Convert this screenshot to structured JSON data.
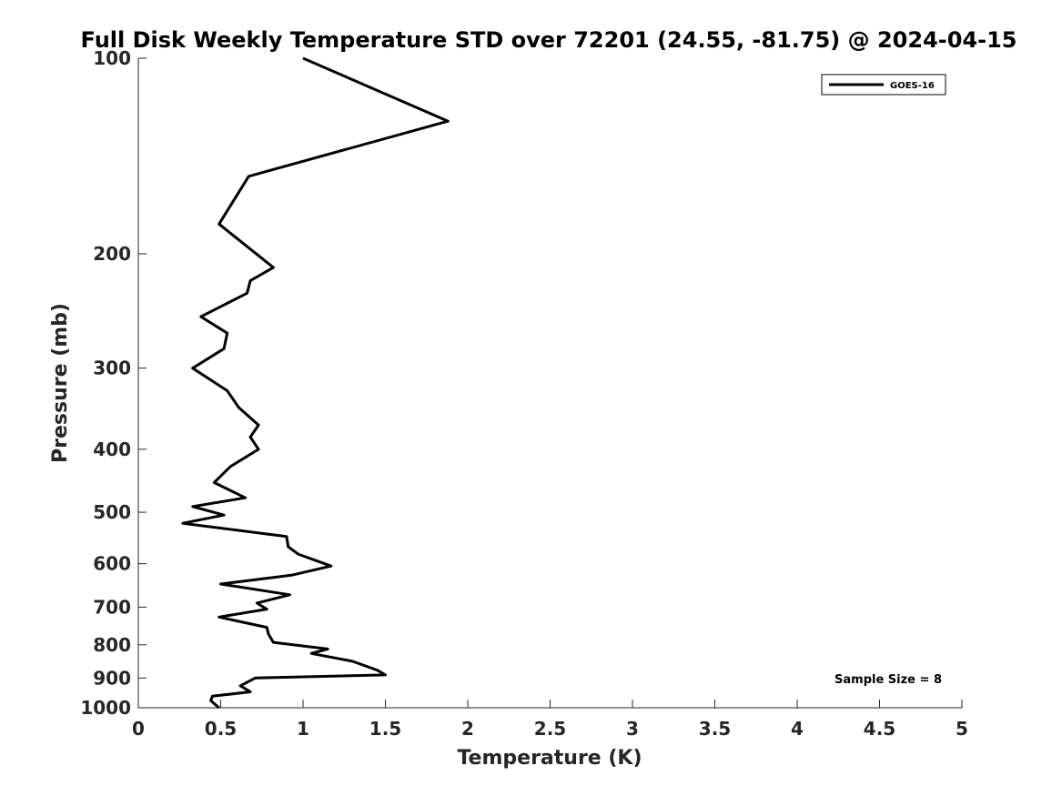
{
  "chart_data": {
    "type": "line",
    "title": "Full Disk Weekly Temperature STD over 72201 (24.55, -81.75) @ 2024-04-15",
    "xlabel": "Temperature (K)",
    "ylabel": "Pressure (mb)",
    "xlim": [
      0,
      5
    ],
    "ylim": [
      100,
      1000
    ],
    "y_scale": "log",
    "y_reversed": true,
    "x_ticks": [
      "0",
      "0.5",
      "1",
      "1.5",
      "2",
      "2.5",
      "3",
      "3.5",
      "4",
      "4.5",
      "5"
    ],
    "y_ticks": [
      "100",
      "200",
      "300",
      "400",
      "500",
      "600",
      "700",
      "800",
      "900",
      "1000"
    ],
    "legend": {
      "location": "top-right",
      "entries": [
        "GOES-16"
      ]
    },
    "annotation": "Sample Size = 8",
    "series": [
      {
        "name": "GOES-16",
        "color": "#000000",
        "points": [
          [
            1.0,
            100
          ],
          [
            1.88,
            125
          ],
          [
            0.67,
            152
          ],
          [
            0.49,
            180
          ],
          [
            0.82,
            210
          ],
          [
            0.68,
            220
          ],
          [
            0.66,
            230
          ],
          [
            0.38,
            250
          ],
          [
            0.54,
            265
          ],
          [
            0.52,
            280
          ],
          [
            0.33,
            300
          ],
          [
            0.54,
            325
          ],
          [
            0.61,
            345
          ],
          [
            0.73,
            367
          ],
          [
            0.68,
            383
          ],
          [
            0.73,
            400
          ],
          [
            0.56,
            425
          ],
          [
            0.46,
            450
          ],
          [
            0.65,
            475
          ],
          [
            0.33,
            490
          ],
          [
            0.52,
            505
          ],
          [
            0.27,
            520
          ],
          [
            0.9,
            545
          ],
          [
            0.91,
            565
          ],
          [
            0.97,
            580
          ],
          [
            1.17,
            605
          ],
          [
            0.93,
            625
          ],
          [
            0.5,
            645
          ],
          [
            0.92,
            670
          ],
          [
            0.72,
            690
          ],
          [
            0.78,
            705
          ],
          [
            0.49,
            725
          ],
          [
            0.78,
            752
          ],
          [
            0.79,
            770
          ],
          [
            0.82,
            793
          ],
          [
            1.15,
            812
          ],
          [
            1.05,
            825
          ],
          [
            1.3,
            848
          ],
          [
            1.45,
            875
          ],
          [
            1.5,
            890
          ],
          [
            0.71,
            900
          ],
          [
            0.62,
            925
          ],
          [
            0.68,
            945
          ],
          [
            0.45,
            960
          ],
          [
            0.44,
            975
          ],
          [
            0.49,
            1000
          ]
        ]
      }
    ]
  }
}
